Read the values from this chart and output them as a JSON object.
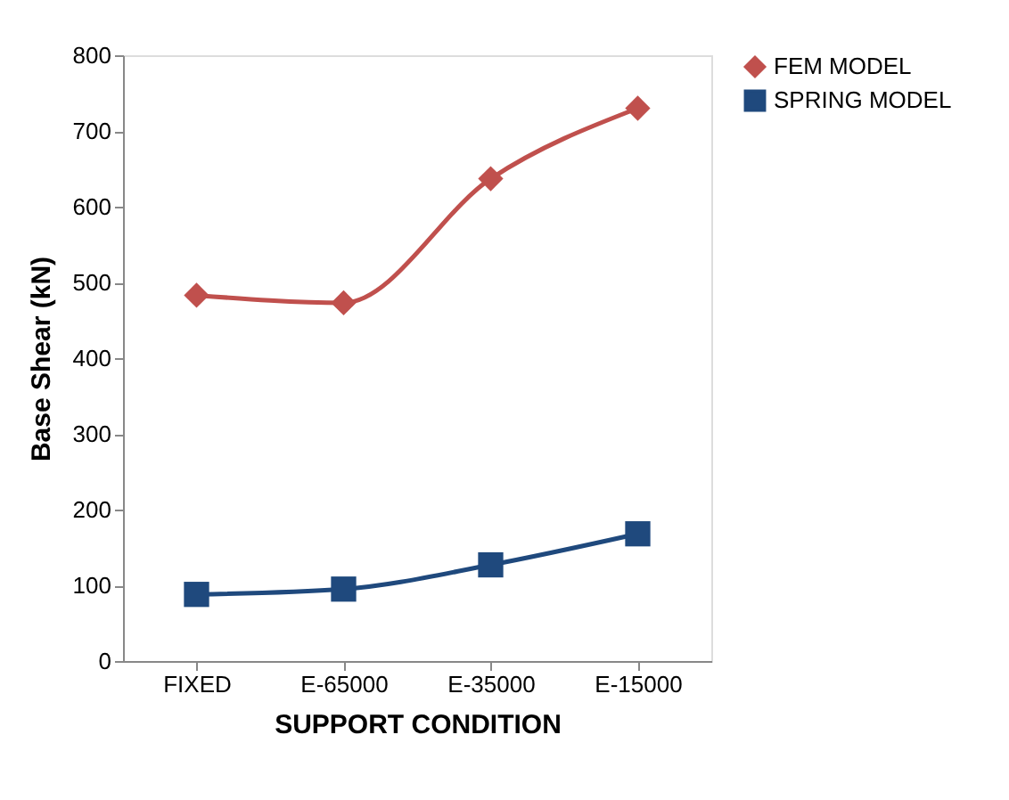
{
  "chart_data": {
    "type": "line",
    "xlabel": "SUPPORT CONDITION",
    "ylabel": "Base Shear (kN)",
    "categories": [
      "FIXED",
      "E-65000",
      "E-35000",
      "E-15000"
    ],
    "series": [
      {
        "name": "FEM MODEL",
        "color": "#c0504d",
        "values": [
          483,
          473,
          637,
          730
        ],
        "marker": "diamond"
      },
      {
        "name": "SPRING MODEL",
        "color": "#1f497d",
        "values": [
          88,
          95,
          127,
          168
        ],
        "marker": "square"
      }
    ],
    "ylim": [
      0,
      800
    ],
    "yticks": [
      0,
      100,
      200,
      300,
      400,
      500,
      600,
      700,
      800
    ],
    "grid": false,
    "legend": "right"
  }
}
